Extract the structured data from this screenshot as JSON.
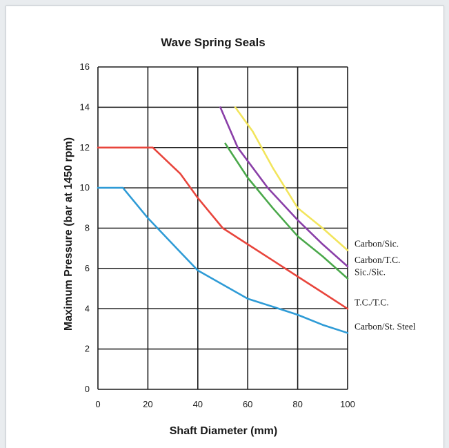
{
  "chart_data": {
    "type": "line",
    "title": "Wave Spring Seals",
    "xlabel": "Shaft Diameter (mm)",
    "ylabel": "Maximum Pressure (bar at 1450 rpm)",
    "xlim": [
      0,
      100
    ],
    "ylim": [
      0,
      16
    ],
    "xticks": [
      0,
      20,
      40,
      60,
      80,
      100
    ],
    "yticks": [
      0,
      2,
      4,
      6,
      8,
      10,
      12,
      14,
      16
    ],
    "grid": true,
    "legend_placement": "right, at line ends",
    "series": [
      {
        "name": "Carbon/Sic.",
        "color": "#f2e55c",
        "x": [
          55,
          62,
          70,
          80,
          90,
          100
        ],
        "y": [
          14,
          12.8,
          11,
          9,
          8,
          6.9
        ]
      },
      {
        "name": "Carbon/T.C.",
        "color": "#8a3fa8",
        "x": [
          49,
          56,
          68,
          80,
          90,
          100
        ],
        "y": [
          14,
          12,
          10,
          8.4,
          7.2,
          6.1
        ]
      },
      {
        "name": "Sic./Sic.",
        "color": "#4aa84a",
        "x": [
          51,
          60,
          70,
          80,
          90,
          100
        ],
        "y": [
          12.2,
          10.5,
          9,
          7.6,
          6.6,
          5.5
        ]
      },
      {
        "name": "T.C./T.C.",
        "color": "#e8453c",
        "x": [
          0,
          22,
          33,
          40,
          50,
          60,
          70,
          80,
          90,
          100
        ],
        "y": [
          12,
          12,
          10.7,
          9.5,
          8,
          7.2,
          6.4,
          5.6,
          4.8,
          4.0
        ]
      },
      {
        "name": "Carbon/St. Steel",
        "color": "#2e9bd6",
        "x": [
          0,
          10,
          20,
          30,
          40,
          50,
          60,
          70,
          80,
          90,
          100
        ],
        "y": [
          10,
          10,
          8.5,
          7.2,
          5.9,
          5.2,
          4.5,
          4.1,
          3.7,
          3.2,
          2.8
        ]
      }
    ]
  }
}
